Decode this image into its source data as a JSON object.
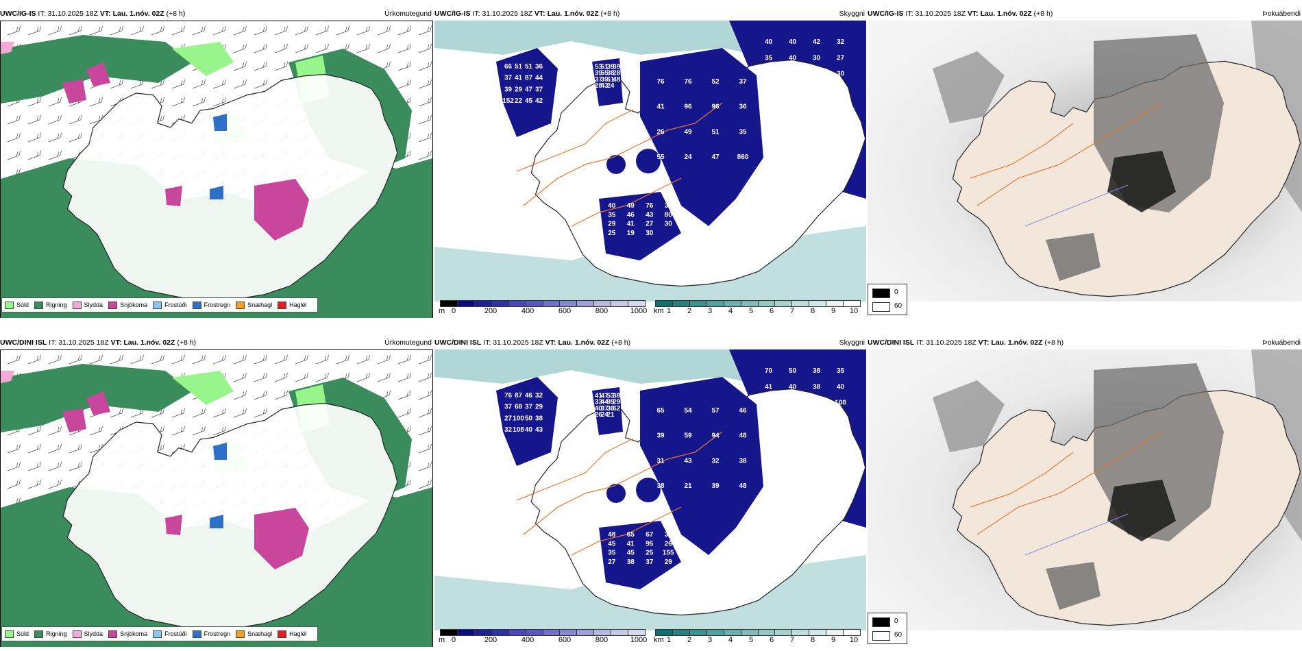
{
  "rows": [
    {
      "model": "UWC/IG-IS",
      "it_label": "IT:",
      "it": "31.10.2025 18Z",
      "vt_label": "VT:",
      "vt": "Lau. 1.nóv. 02Z",
      "lead": "(+8 h)",
      "panels": {
        "precip": {
          "title": "Úrkomutegund"
        },
        "clouds": {
          "title": "Skyggni",
          "numbers": [
            "66",
            "76",
            "40",
            "53",
            "40",
            "51",
            "76",
            "49",
            "51",
            "40",
            "51",
            "52",
            "76",
            "39",
            "42",
            "36",
            "37",
            "36",
            "39",
            "32",
            "37",
            "41",
            "35",
            "39",
            "35",
            "41",
            "96",
            "46",
            "55",
            "40",
            "87",
            "96",
            "43",
            "38",
            "30",
            "44",
            "36",
            "80",
            "28",
            "27",
            "39",
            "26",
            "29",
            "37",
            "103",
            "29",
            "49",
            "41",
            "39",
            "30",
            "47",
            "51",
            "27",
            "61",
            "57",
            "37",
            "35",
            "30",
            "48",
            "30",
            "152",
            "55",
            "25",
            "28",
            "23",
            "22",
            "24",
            "19",
            "43",
            "61",
            "45",
            "47",
            "30",
            "24",
            "58",
            "42",
            "860"
          ]
        }
      }
    },
    {
      "model": "UWC/DINI ISL",
      "it_label": "IT:",
      "it": "31.10.2025 18Z",
      "vt_label": "VT:",
      "vt": "Lau. 1.nóv. 02Z",
      "lead": "(+8 h)",
      "panels": {
        "precip": {
          "title": "Úrkomutegund"
        },
        "clouds": {
          "title": "Skyggni",
          "numbers": [
            "76",
            "65",
            "48",
            "41",
            "70",
            "87",
            "54",
            "65",
            "47",
            "50",
            "46",
            "57",
            "67",
            "53",
            "38",
            "32",
            "46",
            "39",
            "38",
            "35",
            "37",
            "39",
            "45",
            "33",
            "41",
            "68",
            "59",
            "41",
            "44",
            "40",
            "37",
            "94",
            "95",
            "89",
            "38",
            "29",
            "48",
            "26",
            "29",
            "40",
            "27",
            "31",
            "35",
            "40",
            "101",
            "100",
            "43",
            "45",
            "37",
            "48",
            "50",
            "32",
            "25",
            "36",
            "25",
            "38",
            "38",
            "155",
            "62",
            "108",
            "32",
            "38",
            "27",
            "26",
            "27",
            "108",
            "21",
            "38",
            "24",
            "49",
            "40",
            "39",
            "37",
            "21",
            "104",
            "43",
            "48",
            "29"
          ]
        }
      }
    }
  ],
  "fog_title": "Þokuábendi",
  "precip_legend": [
    {
      "label": "Súld",
      "color": "#98f58c"
    },
    {
      "label": "Rigning",
      "color": "#3a8c5c"
    },
    {
      "label": "Slydda",
      "color": "#f4a9d6"
    },
    {
      "label": "Snjókoma",
      "color": "#c8479c"
    },
    {
      "label": "Frostúði",
      "color": "#8cc6f0"
    },
    {
      "label": "Frostregn",
      "color": "#2e70c8"
    },
    {
      "label": "Snæhagl",
      "color": "#f0a020"
    },
    {
      "label": "Haglél",
      "color": "#e02020"
    }
  ],
  "cloud_base_scale": {
    "unit": "m",
    "ticks": [
      "0",
      "200",
      "400",
      "600",
      "800",
      "1000"
    ],
    "colors": [
      "#000000",
      "#0d0d80",
      "#202096",
      "#3030a8",
      "#4848b8",
      "#5858c0",
      "#7070c8",
      "#8888d0",
      "#a0a0d8",
      "#b8b8e0",
      "#c8c8e8",
      "#d8d8f0"
    ]
  },
  "visibility_scale": {
    "unit": "km",
    "ticks": [
      "1",
      "2",
      "3",
      "4",
      "5",
      "6",
      "7",
      "8",
      "9",
      "10"
    ],
    "colors": [
      "#0f7070",
      "#2a8080",
      "#3f8f8f",
      "#55a0a0",
      "#6aaeae",
      "#80baba",
      "#95c6c6",
      "#aad2d2",
      "#bfdede",
      "#d4eaea",
      "#eaf4f4",
      "#ffffff"
    ]
  },
  "fog_scale": {
    "low": "0",
    "high": "60"
  },
  "colors": {
    "land_rain": "#3a8c5c",
    "cloud_fill": "#16168c",
    "sea_teal": "#8ec4c4",
    "roads": "#e87830"
  }
}
